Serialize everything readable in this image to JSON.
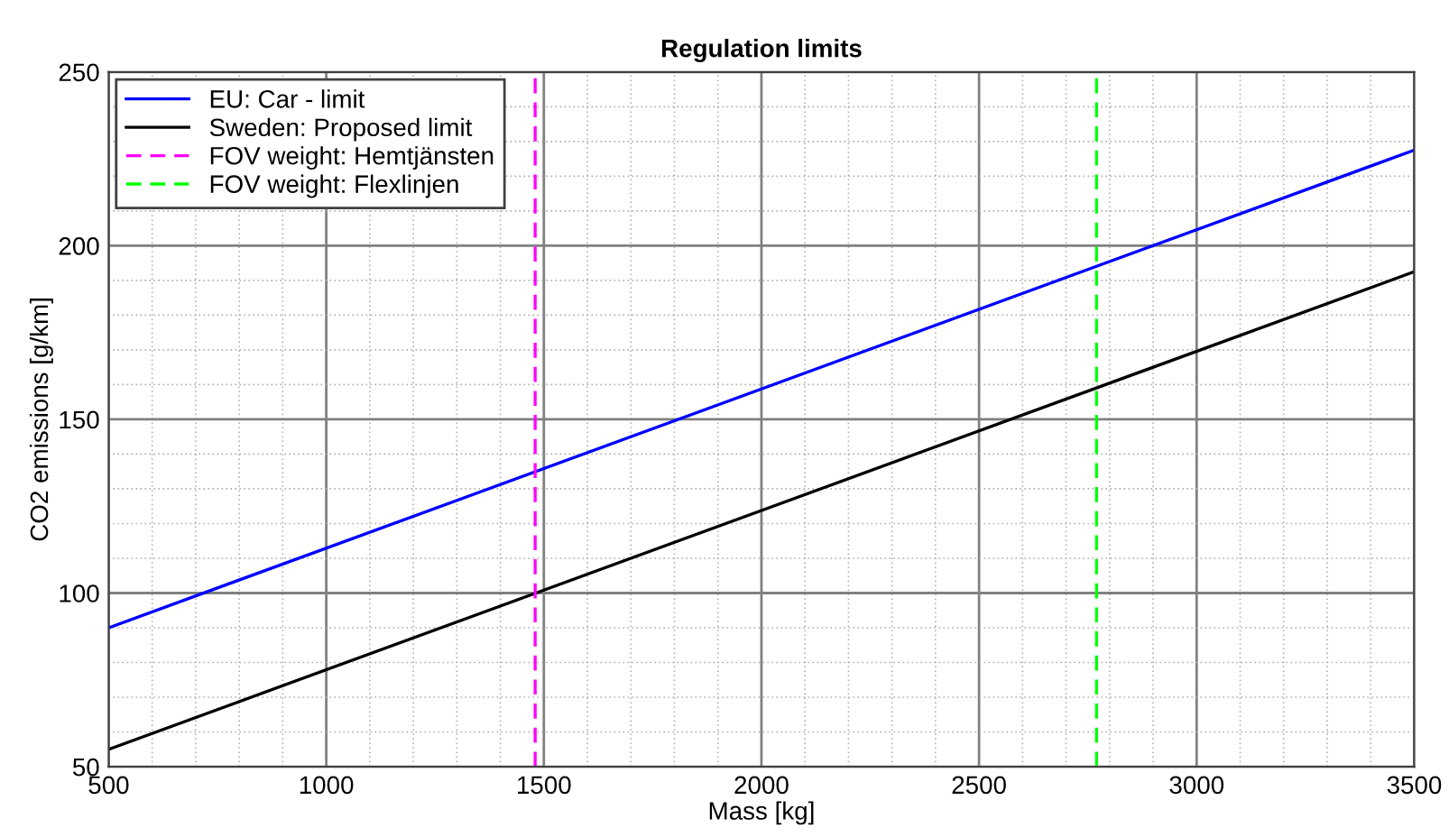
{
  "chart_data": {
    "type": "line",
    "title": "Regulation limits",
    "xlabel": "Mass [kg]",
    "ylabel": "CO2 emissions [g/km]",
    "series": [
      {
        "name": "EU: Car - limit",
        "color": "#0000ff",
        "x": [
          500,
          3500
        ],
        "values": [
          90,
          227.5
        ]
      },
      {
        "name": "Sweden: Proposed limit",
        "color": "#000000",
        "x": [
          500,
          3500
        ],
        "values": [
          55,
          192.5
        ]
      },
      {
        "name": "FOV weight: Hemtjänsten",
        "color": "#ff00ff",
        "x": [
          1480,
          1480
        ],
        "values": [
          50,
          250
        ],
        "line_style": "dashed"
      },
      {
        "name": "FOV weight: Flexlinjen",
        "color": "#00ff00",
        "x": [
          2770,
          2770
        ],
        "values": [
          50,
          250
        ],
        "line_style": "dashed"
      }
    ],
    "xlim": [
      500,
      3500
    ],
    "ylim": [
      50,
      250
    ],
    "xticks": [
      500,
      1000,
      1500,
      2000,
      2500,
      3000,
      3500
    ],
    "yticks": [
      50,
      100,
      150,
      200,
      250
    ],
    "grid": true,
    "legend": "top left"
  }
}
